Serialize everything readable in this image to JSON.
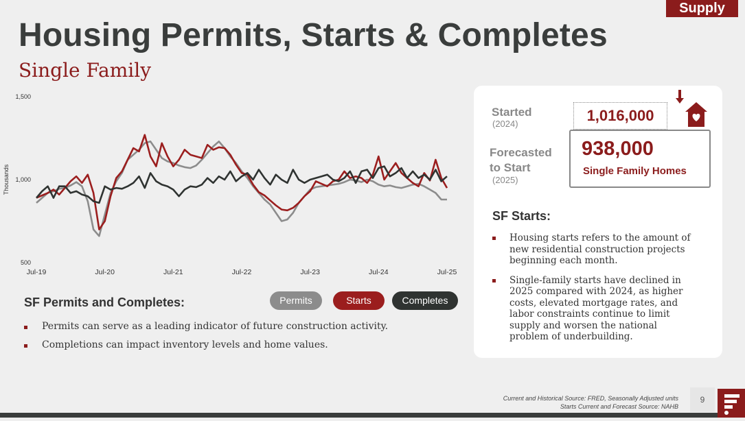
{
  "tag": "Supply",
  "title": "Housing Permits, Starts & Completes",
  "subtitle": "Single Family",
  "legend": {
    "permits": "Permits",
    "starts": "Starts",
    "completes": "Completes"
  },
  "left_section": {
    "heading": "SF Permits and Completes:",
    "bullets": [
      "Permits can serve as a leading indicator of future construction activity.",
      "Completions can impact inventory levels and home values."
    ]
  },
  "card": {
    "started_label": "Started",
    "started_year": "(2024)",
    "started_value": "1,016,000",
    "forecast_label_1": "Forecasted",
    "forecast_label_2": "to Start",
    "forecast_year": "(2025)",
    "forecast_value": "938,000",
    "forecast_caption": "Single Family Homes",
    "sf_heading": "SF Starts:",
    "bullets": [
      "Housing starts refers to the amount of new residential construction projects beginning each month.",
      "Single-family starts have declined in 2025 compared with 2024, as higher costs, elevated mortgage rates, and labor constraints continue to limit supply and worsen the national problem of underbuilding."
    ]
  },
  "source_line_1": "Current and Historical Source: FRED, Seasonally Adjusted units",
  "source_line_2": "Starts Current and Forecast Source: NAHB",
  "page_number": "9",
  "colors": {
    "permits": "#8c8c8c",
    "starts": "#9b1e1e",
    "completes": "#2f3331",
    "brand": "#8b1c1c"
  },
  "chart_data": {
    "type": "line",
    "ylabel": "Thousands",
    "ylim": [
      500,
      1500
    ],
    "yticks": [
      {
        "v": 500,
        "label": "500"
      },
      {
        "v": 1000,
        "label": "1,000"
      },
      {
        "v": 1500,
        "label": "1,500"
      }
    ],
    "xticks": [
      {
        "i": 0,
        "label": "Jul-19"
      },
      {
        "i": 12,
        "label": "Jul-20"
      },
      {
        "i": 24,
        "label": "Jul-21"
      },
      {
        "i": 36,
        "label": "Jul-22"
      },
      {
        "i": 48,
        "label": "Jul-23"
      },
      {
        "i": 60,
        "label": "Jul-24"
      },
      {
        "i": 72,
        "label": "Jul-25"
      }
    ],
    "series": [
      {
        "name": "Permits",
        "color": "#8c8c8c",
        "values": [
          860,
          890,
          920,
          930,
          945,
          950,
          965,
          985,
          960,
          870,
          700,
          660,
          790,
          920,
          990,
          1040,
          1120,
          1150,
          1180,
          1220,
          1230,
          1180,
          1130,
          1110,
          1100,
          1085,
          1075,
          1070,
          1085,
          1120,
          1160,
          1200,
          1230,
          1190,
          1140,
          1100,
          1050,
          1010,
          960,
          920,
          880,
          850,
          800,
          750,
          760,
          800,
          860,
          900,
          940,
          955,
          960,
          965,
          970,
          975,
          985,
          1000,
          995,
          985,
          1000,
          990,
          970,
          960,
          965,
          955,
          950,
          960,
          970,
          975,
          960,
          940,
          920,
          880,
          880
        ]
      },
      {
        "name": "Starts",
        "color": "#9b1e1e",
        "values": [
          890,
          905,
          920,
          940,
          910,
          950,
          990,
          1020,
          980,
          1030,
          920,
          700,
          750,
          900,
          1010,
          1050,
          1120,
          1190,
          1170,
          1270,
          1140,
          1080,
          1220,
          1140,
          1080,
          1120,
          1180,
          1150,
          1140,
          1130,
          1210,
          1180,
          1195,
          1190,
          1150,
          1090,
          1040,
          1030,
          970,
          925,
          905,
          875,
          845,
          820,
          815,
          830,
          860,
          900,
          930,
          990,
          975,
          960,
          990,
          1000,
          1050,
          1010,
          1020,
          1010,
          980,
          1030,
          1140,
          1000,
          1050,
          1100,
          1040,
          1010,
          980,
          960,
          1040,
          995,
          1120,
          1010,
          950
        ]
      },
      {
        "name": "Completes",
        "color": "#2f3331",
        "values": [
          890,
          930,
          960,
          890,
          960,
          960,
          920,
          930,
          910,
          900,
          870,
          860,
          960,
          940,
          950,
          945,
          960,
          980,
          1020,
          950,
          1040,
          990,
          970,
          960,
          940,
          900,
          940,
          960,
          955,
          970,
          1010,
          980,
          1020,
          1000,
          1050,
          990,
          1020,
          1040,
          1000,
          1060,
          1010,
          970,
          1030,
          1000,
          980,
          1060,
          1000,
          980,
          1000,
          1010,
          1020,
          1030,
          1000,
          990,
          1010,
          1050,
          980,
          1050,
          1060,
          1010,
          1070,
          1080,
          1020,
          1040,
          1070,
          1010,
          1050,
          1010,
          1030,
          1000,
          1060,
          990,
          1020
        ]
      }
    ]
  }
}
